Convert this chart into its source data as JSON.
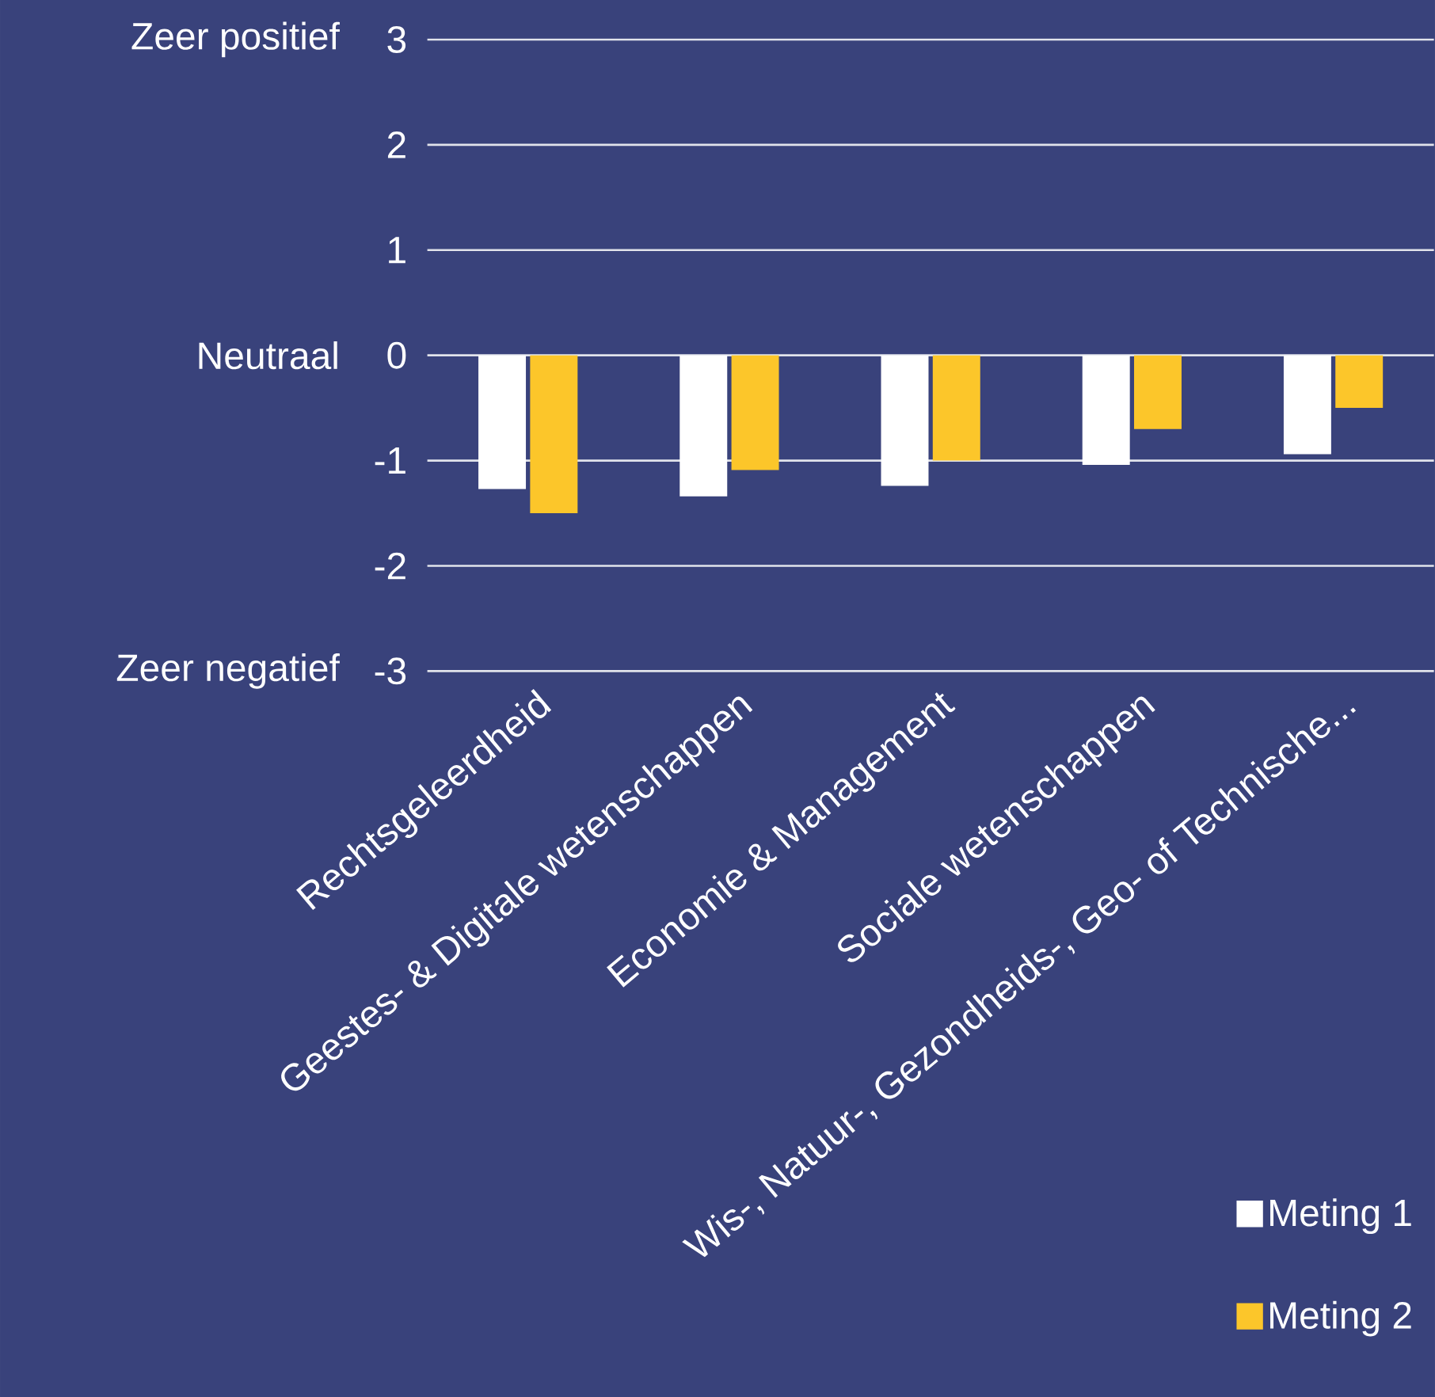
{
  "chart_data": {
    "type": "bar",
    "categories": [
      "Rechtsgeleerdheid",
      "Geestes- & Digitale wetenschappen",
      "Economie & Management",
      "Sociale wetenschappen",
      "Wis-, Natuur-, Gezondheids-, Geo- of Technische..."
    ],
    "series": [
      {
        "name": "Meting 1",
        "color": "#ffffff",
        "values": [
          -1.27,
          -1.34,
          -1.24,
          -1.04,
          -0.94
        ]
      },
      {
        "name": "Meting 2",
        "color": "#fcc62a",
        "values": [
          -1.5,
          -1.09,
          -1.0,
          -0.7,
          -0.5
        ]
      }
    ],
    "ylim": [
      -3,
      3
    ],
    "yticks": [
      -3,
      -2,
      -1,
      0,
      1,
      2,
      3
    ],
    "grid": "y",
    "legend": "bottom right",
    "annotations": [
      "Zeer positief",
      "Neutraal",
      "Zeer negatief"
    ]
  }
}
